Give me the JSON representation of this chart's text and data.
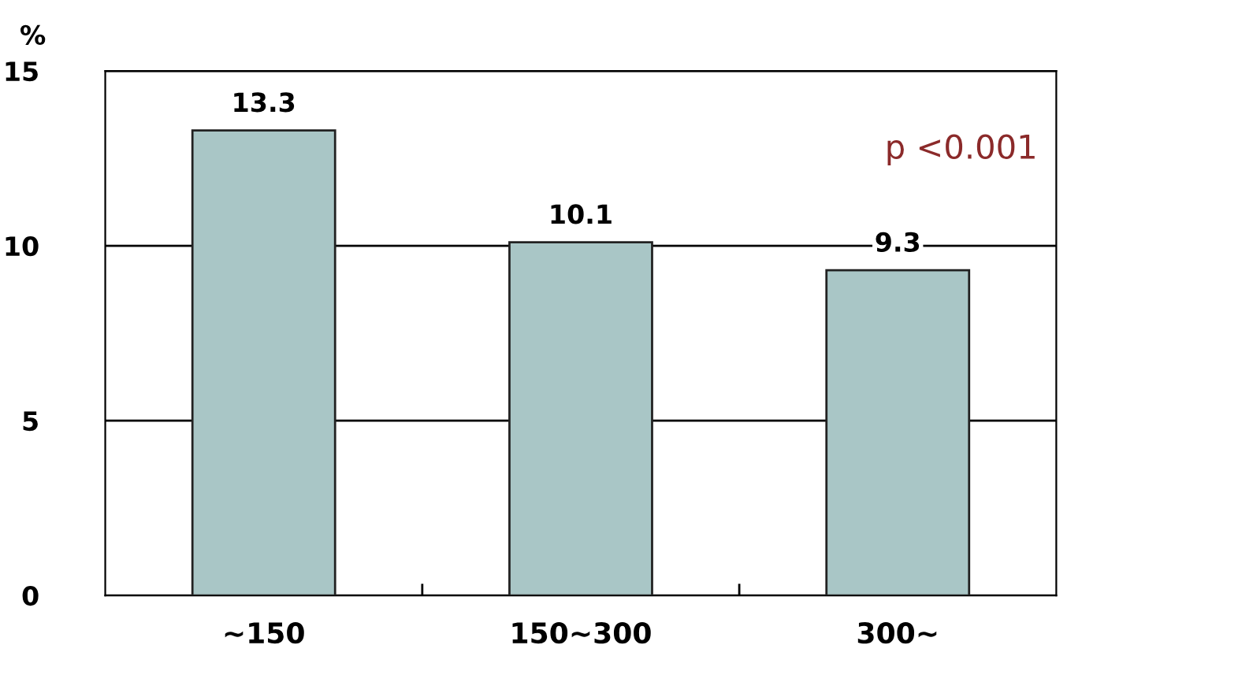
{
  "chart_data": {
    "type": "bar",
    "ylabel": "%",
    "categories": [
      "∼150",
      "150∼300",
      "300∼"
    ],
    "values": [
      13.3,
      10.1,
      9.3
    ],
    "color": "#a9c6c6",
    "ylim": [
      0,
      15
    ],
    "yticks": [
      0,
      5,
      10,
      15
    ],
    "grid": "y",
    "data_labels": true,
    "annotations": [
      "p <0.001"
    ]
  }
}
